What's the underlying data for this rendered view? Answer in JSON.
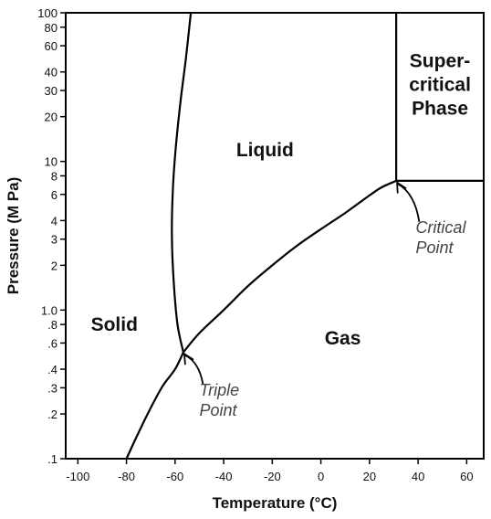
{
  "chart_data": {
    "type": "line",
    "xlabel": "Temperature (°C)",
    "ylabel": "Pressure (M Pa)",
    "xlim": [
      -105,
      67
    ],
    "ylim": [
      0.1,
      100
    ],
    "y_scale": "log",
    "grid": false,
    "x_ticks": [
      {
        "value": -100,
        "label": "-100"
      },
      {
        "value": -80,
        "label": "-80"
      },
      {
        "value": -60,
        "label": "-60"
      },
      {
        "value": -40,
        "label": "-40"
      },
      {
        "value": -20,
        "label": "-20"
      },
      {
        "value": 0,
        "label": "0"
      },
      {
        "value": 20,
        "label": "20"
      },
      {
        "value": 40,
        "label": "40"
      },
      {
        "value": 60,
        "label": "60"
      }
    ],
    "y_ticks": [
      {
        "value": 0.1,
        "label": ".1"
      },
      {
        "value": 0.2,
        "label": ".2"
      },
      {
        "value": 0.3,
        "label": ".3"
      },
      {
        "value": 0.4,
        "label": ".4"
      },
      {
        "value": 0.6,
        "label": ".6"
      },
      {
        "value": 0.8,
        "label": ".8"
      },
      {
        "value": 1.0,
        "label": "1.0"
      },
      {
        "value": 2,
        "label": "2"
      },
      {
        "value": 3,
        "label": "3"
      },
      {
        "value": 4,
        "label": "4"
      },
      {
        "value": 6,
        "label": "6"
      },
      {
        "value": 8,
        "label": "8"
      },
      {
        "value": 10,
        "label": "10"
      },
      {
        "value": 20,
        "label": "20"
      },
      {
        "value": 30,
        "label": "30"
      },
      {
        "value": 40,
        "label": "40"
      },
      {
        "value": 60,
        "label": "60"
      },
      {
        "value": 80,
        "label": "80"
      },
      {
        "value": 100,
        "label": "100"
      }
    ],
    "curves": [
      {
        "id": "sublimation-curve",
        "points": [
          [
            -80,
            0.1
          ],
          [
            -75,
            0.15
          ],
          [
            -70,
            0.22
          ],
          [
            -65,
            0.31
          ],
          [
            -60,
            0.4
          ],
          [
            -56.6,
            0.52
          ]
        ]
      },
      {
        "id": "vaporization-curve",
        "points": [
          [
            -56.6,
            0.52
          ],
          [
            -50,
            0.7
          ],
          [
            -40,
            1.0
          ],
          [
            -30,
            1.45
          ],
          [
            -20,
            2.0
          ],
          [
            -10,
            2.7
          ],
          [
            0,
            3.5
          ],
          [
            10,
            4.5
          ],
          [
            20,
            5.9
          ],
          [
            25,
            6.7
          ],
          [
            31,
            7.4
          ]
        ]
      },
      {
        "id": "melting-curve",
        "points": [
          [
            -56.6,
            0.52
          ],
          [
            -59,
            0.8
          ],
          [
            -60.5,
            1.5
          ],
          [
            -61.3,
            3
          ],
          [
            -61,
            6
          ],
          [
            -59.8,
            12
          ],
          [
            -57.8,
            25
          ],
          [
            -55.5,
            50
          ],
          [
            -53.5,
            100
          ]
        ]
      },
      {
        "id": "critical-isotherm",
        "points": [
          [
            31,
            7.4
          ],
          [
            31,
            100
          ]
        ]
      },
      {
        "id": "critical-isobar",
        "points": [
          [
            31,
            7.4
          ],
          [
            67,
            7.4
          ]
        ]
      }
    ],
    "regions": [
      {
        "id": "solid",
        "lines": [
          "Solid"
        ],
        "x": -85,
        "y": 0.8
      },
      {
        "id": "liquid",
        "lines": [
          "Liquid"
        ],
        "x": -23,
        "y": 12
      },
      {
        "id": "gas",
        "lines": [
          "Gas"
        ],
        "x": 9,
        "y": 0.65
      },
      {
        "id": "supercritical",
        "lines": [
          "Super-",
          "critical",
          "Phase"
        ],
        "x": 49,
        "y": 33
      }
    ],
    "annotations": [
      {
        "id": "triple-point",
        "lines": [
          "Triple",
          "Point"
        ],
        "point": [
          -56.6,
          0.52
        ],
        "text_x": -50,
        "text_y": 0.29
      },
      {
        "id": "critical-point",
        "lines": [
          "Critical",
          "Point"
        ],
        "point": [
          31,
          7.4
        ],
        "text_x": 39,
        "text_y": 3.6
      }
    ]
  }
}
